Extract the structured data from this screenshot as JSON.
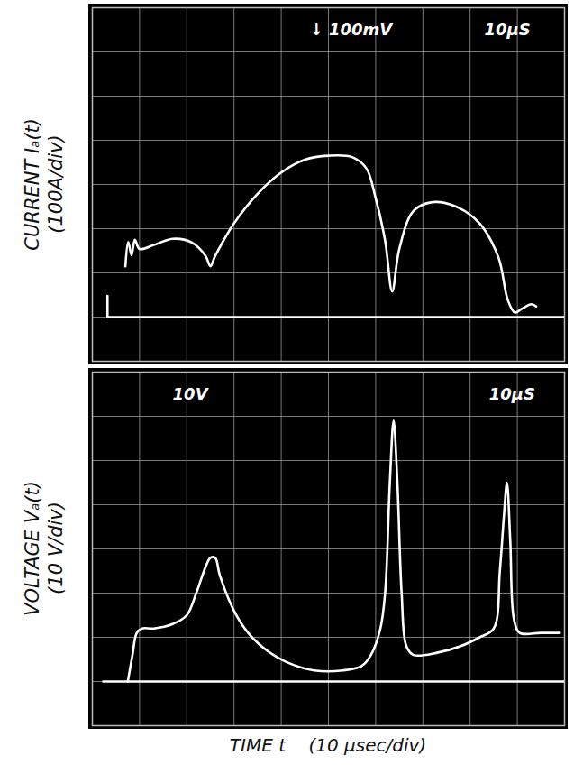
{
  "chart_data": [
    {
      "type": "line",
      "ylabel": [
        "CURRENT Iₐ(t)",
        "(100A/div)"
      ],
      "annotations": [
        "↓ 100mV",
        "10μS"
      ],
      "xlim": [
        0,
        100
      ],
      "xticks": [
        0,
        10,
        20,
        30,
        40,
        50,
        60,
        70,
        80,
        90,
        100
      ],
      "ylim": [
        -100,
        700
      ],
      "yticks": [
        -100,
        0,
        100,
        200,
        300,
        400,
        500,
        600,
        700
      ],
      "grid": true,
      "tick_labels": false,
      "series": [
        {
          "color": "#ffffff",
          "x": [
            7,
            7.6,
            8.3,
            9,
            10,
            13,
            17,
            21,
            24,
            25,
            26,
            30,
            35,
            40,
            45,
            50,
            55,
            58,
            60,
            62,
            63.5,
            65,
            68,
            72,
            77,
            82,
            86,
            88,
            89.5,
            91,
            93,
            94
          ],
          "values": [
            115,
            170,
            140,
            175,
            154,
            163,
            177,
            169,
            138,
            115,
            138,
            212,
            279,
            327,
            356,
            365,
            362,
            337,
            269,
            173,
            58,
            154,
            240,
            260,
            250,
            212,
            135,
            38,
            10,
            19,
            29,
            24
          ]
        },
        {
          "color": "#ffffff",
          "x": [
            3.2,
            3.2,
            100
          ],
          "values": [
            48,
            0,
            0
          ]
        }
      ]
    },
    {
      "type": "line",
      "ylabel": [
        "VOLTAGE Vₐ(t)",
        "(10 V/div)"
      ],
      "xlabel": "TIME t    (10 μsec/div)",
      "annotations": [
        "10V",
        "10μS"
      ],
      "xlim": [
        0,
        100
      ],
      "xticks": [
        0,
        10,
        20,
        30,
        40,
        50,
        60,
        70,
        80,
        90,
        100
      ],
      "ylim": [
        -10,
        70
      ],
      "yticks": [
        -10,
        0,
        10,
        20,
        30,
        40,
        50,
        60,
        70
      ],
      "grid": true,
      "tick_labels": false,
      "series": [
        {
          "color": "#ffffff",
          "x": [
            7.5,
            8.5,
            9.4,
            10.5,
            13,
            17,
            20,
            22,
            24,
            25,
            26,
            27,
            30,
            33,
            37,
            42,
            47,
            53,
            57,
            59,
            61,
            62,
            63,
            63.8,
            64.6,
            65.5,
            66.5,
            68,
            73,
            78,
            82,
            85,
            86.3,
            87.2,
            87.8,
            88.5,
            89.3,
            90.5,
            95,
            99
          ],
          "values": [
            0,
            6,
            11,
            12,
            12,
            13,
            15,
            20,
            26,
            28,
            28,
            24,
            16,
            11,
            7,
            4,
            2.5,
            2.5,
            3.5,
            6,
            12,
            20,
            45,
            59,
            45,
            20,
            8,
            6,
            6.5,
            8,
            10,
            12,
            25,
            38,
            45,
            32,
            14,
            11,
            11,
            11
          ]
        },
        {
          "color": "#ffffff",
          "x": [
            2.3,
            100
          ],
          "values": [
            0,
            0
          ]
        }
      ]
    }
  ]
}
